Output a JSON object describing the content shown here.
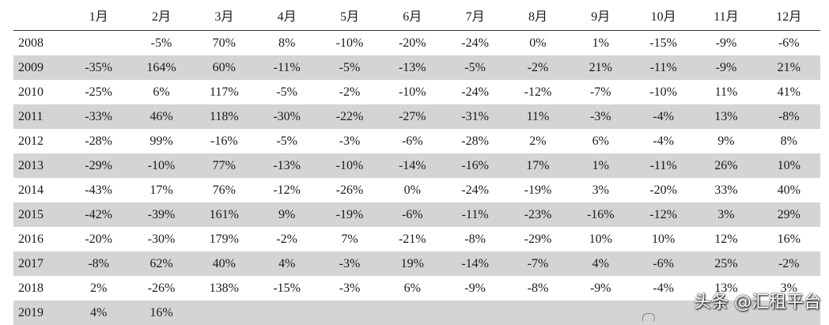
{
  "chart_data": {
    "type": "table",
    "columns": [
      "",
      "1月",
      "2月",
      "3月",
      "4月",
      "5月",
      "6月",
      "7月",
      "8月",
      "9月",
      "10月",
      "11月",
      "12月"
    ],
    "rows": [
      [
        "2008",
        "",
        "-5%",
        "70%",
        "8%",
        "-10%",
        "-20%",
        "-24%",
        "0%",
        "1%",
        "-15%",
        "-9%",
        "-6%"
      ],
      [
        "2009",
        "-35%",
        "164%",
        "60%",
        "-11%",
        "-5%",
        "-13%",
        "-5%",
        "-2%",
        "21%",
        "-11%",
        "-9%",
        "21%"
      ],
      [
        "2010",
        "-25%",
        "6%",
        "117%",
        "-5%",
        "-2%",
        "-10%",
        "-24%",
        "-12%",
        "-7%",
        "-10%",
        "11%",
        "41%"
      ],
      [
        "2011",
        "-33%",
        "46%",
        "118%",
        "-30%",
        "-22%",
        "-27%",
        "-31%",
        "11%",
        "-3%",
        "-4%",
        "13%",
        "-8%"
      ],
      [
        "2012",
        "-28%",
        "99%",
        "-16%",
        "-5%",
        "-3%",
        "-6%",
        "-28%",
        "2%",
        "6%",
        "-4%",
        "9%",
        "8%"
      ],
      [
        "2013",
        "-29%",
        "-10%",
        "77%",
        "-13%",
        "-10%",
        "-14%",
        "-16%",
        "17%",
        "1%",
        "-11%",
        "26%",
        "10%"
      ],
      [
        "2014",
        "-43%",
        "17%",
        "76%",
        "-12%",
        "-26%",
        "0%",
        "-24%",
        "-19%",
        "3%",
        "-20%",
        "33%",
        "40%"
      ],
      [
        "2015",
        "-42%",
        "-39%",
        "161%",
        "9%",
        "-19%",
        "-6%",
        "-11%",
        "-23%",
        "-16%",
        "-12%",
        "3%",
        "29%"
      ],
      [
        "2016",
        "-20%",
        "-30%",
        "179%",
        "-2%",
        "7%",
        "-21%",
        "-8%",
        "-29%",
        "10%",
        "10%",
        "12%",
        "16%"
      ],
      [
        "2017",
        "-8%",
        "62%",
        "40%",
        "4%",
        "-3%",
        "19%",
        "-14%",
        "-7%",
        "4%",
        "-6%",
        "25%",
        "-2%"
      ],
      [
        "2018",
        "2%",
        "-26%",
        "138%",
        "-15%",
        "-3%",
        "6%",
        "-9%",
        "-8%",
        "-9%",
        "-4%",
        "13%",
        "3%"
      ],
      [
        "2019",
        "4%",
        "16%",
        "",
        "",
        "",
        "",
        "",
        "",
        "",
        "",
        "",
        ""
      ]
    ]
  },
  "watermark": {
    "text": "头条 @汇租平台",
    "icon": "wechat-icon"
  }
}
